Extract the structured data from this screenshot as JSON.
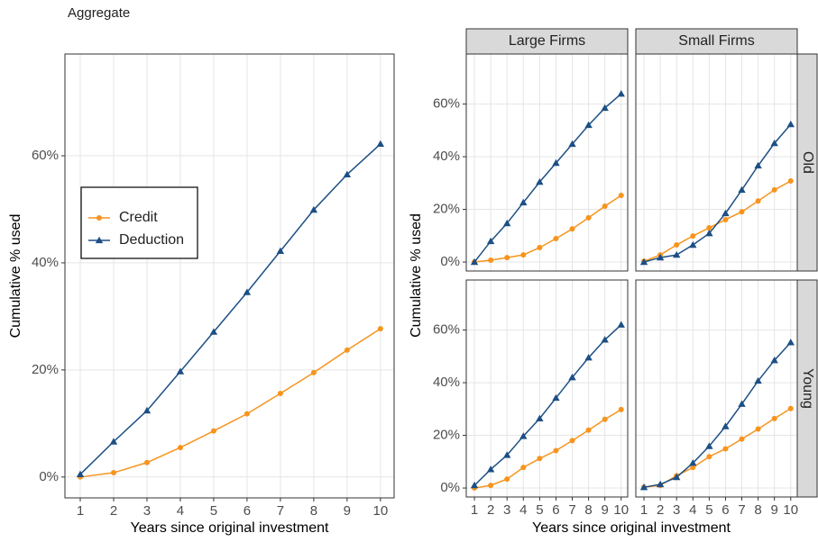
{
  "chart_data": [
    {
      "type": "line",
      "title": "Aggregate",
      "x_label": "Years since original investment",
      "y_label": "Cumulative % used",
      "x": [
        1,
        2,
        3,
        4,
        5,
        6,
        7,
        8,
        9,
        10
      ],
      "xlim": [
        0.54,
        10.41
      ],
      "xticks": [
        1,
        2,
        3,
        4,
        5,
        6,
        7,
        8,
        9,
        10
      ],
      "ylim": [
        -3.9,
        79
      ],
      "yticks": [
        {
          "value": 0,
          "label": "0%"
        },
        {
          "value": 20,
          "label": "20%"
        },
        {
          "value": 40,
          "label": "40%"
        },
        {
          "value": 60,
          "label": "60%"
        }
      ],
      "grid": true,
      "legend": "left",
      "series": [
        {
          "name": "Credit",
          "color": "#f7941d",
          "marker": "circle",
          "values": [
            0,
            0.8,
            2.7,
            5.5,
            8.6,
            11.8,
            15.6,
            19.5,
            23.7,
            27.7
          ]
        },
        {
          "name": "Deduction",
          "color": "#1d4f85",
          "marker": "triangle",
          "values": [
            0.5,
            6.6,
            12.4,
            19.7,
            27.1,
            34.5,
            42.2,
            49.9,
            56.5,
            62.2
          ]
        }
      ]
    },
    {
      "type": "facet_line",
      "x_label": "Years since original investment",
      "y_label": "Cumulative % used",
      "x": [
        1,
        2,
        3,
        4,
        5,
        6,
        7,
        8,
        9,
        10
      ],
      "xlim": [
        0.5,
        10.4
      ],
      "xticks": [
        1,
        2,
        3,
        4,
        5,
        6,
        7,
        8,
        9,
        10
      ],
      "ylim": [
        -3.4,
        79
      ],
      "yticks": [
        {
          "value": 0,
          "label": "0%"
        },
        {
          "value": 20,
          "label": "20%"
        },
        {
          "value": 40,
          "label": "40%"
        },
        {
          "value": 60,
          "label": "60%"
        }
      ],
      "grid": true,
      "col_labels": [
        "Large Firms",
        "Small Firms"
      ],
      "row_labels": [
        "Old",
        "Young"
      ],
      "panels": [
        [
          {
            "series": [
              {
                "color": "#f7941d",
                "marker": "circle",
                "values": [
                  0,
                  0.7,
                  1.7,
                  2.7,
                  5.5,
                  8.9,
                  12.6,
                  16.8,
                  21.2,
                  25.3
                ]
              },
              {
                "color": "#1d4f85",
                "marker": "triangle",
                "values": [
                  0,
                  7.9,
                  14.7,
                  22.6,
                  30.4,
                  37.6,
                  44.8,
                  52,
                  58.5,
                  63.9
                ]
              }
            ]
          },
          {
            "series": [
              {
                "color": "#f7941d",
                "marker": "circle",
                "values": [
                  0.3,
                  2.7,
                  6.5,
                  9.9,
                  13,
                  16.1,
                  19.1,
                  23.2,
                  27.4,
                  30.8
                ]
              },
              {
                "color": "#1d4f85",
                "marker": "triangle",
                "values": [
                  0,
                  1.7,
                  2.7,
                  6.5,
                  10.9,
                  18.5,
                  27.4,
                  36.6,
                  45.1,
                  52.3
                ]
              }
            ]
          }
        ],
        [
          {
            "series": [
              {
                "color": "#f7941d",
                "marker": "circle",
                "values": [
                  0,
                  1,
                  3.4,
                  7.8,
                  11.2,
                  14.2,
                  18,
                  22,
                  26.1,
                  29.8
                ]
              },
              {
                "color": "#1d4f85",
                "marker": "triangle",
                "values": [
                  1,
                  7.1,
                  12.5,
                  19.7,
                  26.4,
                  34.2,
                  42,
                  49.5,
                  56.3,
                  62
                ]
              }
            ]
          },
          {
            "series": [
              {
                "color": "#f7941d",
                "marker": "circle",
                "values": [
                  0.3,
                  1,
                  4.7,
                  7.8,
                  11.9,
                  14.9,
                  18.6,
                  22.4,
                  26.4,
                  30.2
                ]
              },
              {
                "color": "#1d4f85",
                "marker": "triangle",
                "values": [
                  0.3,
                  1.4,
                  4.1,
                  9.5,
                  15.9,
                  23.4,
                  31.9,
                  40.7,
                  48.5,
                  55.3
                ]
              }
            ]
          }
        ]
      ]
    }
  ]
}
